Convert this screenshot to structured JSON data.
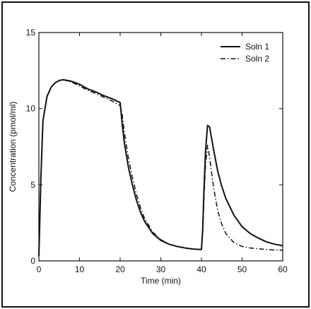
{
  "chart_data": {
    "type": "line",
    "title": "",
    "xlabel": "Time (min)",
    "ylabel": "Concentration (pmol/ml)",
    "xlim": [
      0,
      60
    ],
    "ylim": [
      0,
      15
    ],
    "xticks": [
      "0",
      "10",
      "20",
      "30",
      "40",
      "50",
      "60"
    ],
    "yticks": [
      "0",
      "5",
      "10",
      "15"
    ],
    "grid": false,
    "legend_position": "top-right",
    "series": [
      {
        "name": "Soln 1",
        "style": "solid",
        "points": [
          [
            0,
            0.3
          ],
          [
            0.5,
            5.5
          ],
          [
            1,
            9.2
          ],
          [
            2,
            10.8
          ],
          [
            3,
            11.4
          ],
          [
            4,
            11.7
          ],
          [
            5,
            11.85
          ],
          [
            6,
            11.9
          ],
          [
            8,
            11.8
          ],
          [
            10,
            11.6
          ],
          [
            12,
            11.3
          ],
          [
            14,
            11.1
          ],
          [
            16,
            10.85
          ],
          [
            18,
            10.65
          ],
          [
            20,
            10.4
          ],
          [
            20.5,
            9.0
          ],
          [
            21,
            7.8
          ],
          [
            22,
            6.2
          ],
          [
            23,
            5.0
          ],
          [
            24,
            4.0
          ],
          [
            25,
            3.2
          ],
          [
            26,
            2.6
          ],
          [
            28,
            1.8
          ],
          [
            30,
            1.35
          ],
          [
            32,
            1.1
          ],
          [
            34,
            0.95
          ],
          [
            36,
            0.85
          ],
          [
            38,
            0.78
          ],
          [
            40,
            0.75
          ],
          [
            40.3,
            2.0
          ],
          [
            40.6,
            4.5
          ],
          [
            41,
            7.2
          ],
          [
            41.5,
            8.9
          ],
          [
            42,
            8.8
          ],
          [
            43,
            7.3
          ],
          [
            44,
            5.9
          ],
          [
            45,
            4.9
          ],
          [
            46,
            4.1
          ],
          [
            48,
            3.0
          ],
          [
            50,
            2.25
          ],
          [
            52,
            1.8
          ],
          [
            54,
            1.5
          ],
          [
            56,
            1.25
          ],
          [
            58,
            1.1
          ],
          [
            60,
            1.0
          ]
        ]
      },
      {
        "name": "Soln 2",
        "style": "dashdot",
        "points": [
          [
            0,
            0.3
          ],
          [
            0.5,
            5.5
          ],
          [
            1,
            9.2
          ],
          [
            2,
            10.8
          ],
          [
            3,
            11.4
          ],
          [
            4,
            11.7
          ],
          [
            5,
            11.85
          ],
          [
            6,
            11.9
          ],
          [
            8,
            11.75
          ],
          [
            10,
            11.5
          ],
          [
            12,
            11.2
          ],
          [
            14,
            11.0
          ],
          [
            16,
            10.75
          ],
          [
            18,
            10.5
          ],
          [
            20,
            10.2
          ],
          [
            20.5,
            9.6
          ],
          [
            21,
            8.5
          ],
          [
            22,
            6.8
          ],
          [
            23,
            5.5
          ],
          [
            24,
            4.4
          ],
          [
            25,
            3.5
          ],
          [
            26,
            2.8
          ],
          [
            28,
            1.9
          ],
          [
            30,
            1.4
          ],
          [
            32,
            1.1
          ],
          [
            34,
            0.95
          ],
          [
            36,
            0.85
          ],
          [
            38,
            0.78
          ],
          [
            40,
            0.75
          ],
          [
            40.3,
            1.8
          ],
          [
            40.6,
            4.0
          ],
          [
            41,
            6.3
          ],
          [
            41.5,
            7.6
          ],
          [
            42,
            6.8
          ],
          [
            43,
            4.8
          ],
          [
            44,
            3.3
          ],
          [
            45,
            2.4
          ],
          [
            46,
            1.8
          ],
          [
            48,
            1.2
          ],
          [
            50,
            0.95
          ],
          [
            52,
            0.85
          ],
          [
            54,
            0.8
          ],
          [
            56,
            0.75
          ],
          [
            58,
            0.72
          ],
          [
            60,
            0.7
          ]
        ]
      }
    ]
  }
}
